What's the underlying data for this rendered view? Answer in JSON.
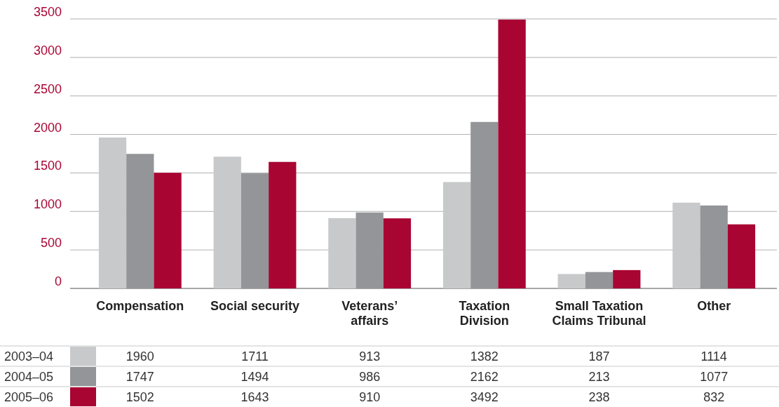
{
  "chart_data": {
    "type": "bar",
    "categories": [
      "Compensation",
      "Social security",
      "Veterans’ affairs",
      "Taxation Division",
      "Small Taxation Claims Tribunal",
      "Other"
    ],
    "series": [
      {
        "name": "2003–04",
        "color": "#c8c9cb",
        "values": [
          1960,
          1711,
          913,
          1382,
          187,
          1114
        ]
      },
      {
        "name": "2004–05",
        "color": "#939598",
        "values": [
          1747,
          1494,
          986,
          2162,
          213,
          1077
        ]
      },
      {
        "name": "2005–06",
        "color": "#a90533",
        "values": [
          1502,
          1643,
          910,
          3492,
          238,
          832
        ]
      }
    ],
    "ylim": [
      0,
      3500
    ],
    "yticks": [
      0,
      500,
      1000,
      1500,
      2000,
      2500,
      3000,
      3500
    ],
    "grid": "y",
    "legend": "bottom",
    "data_labels": true
  }
}
